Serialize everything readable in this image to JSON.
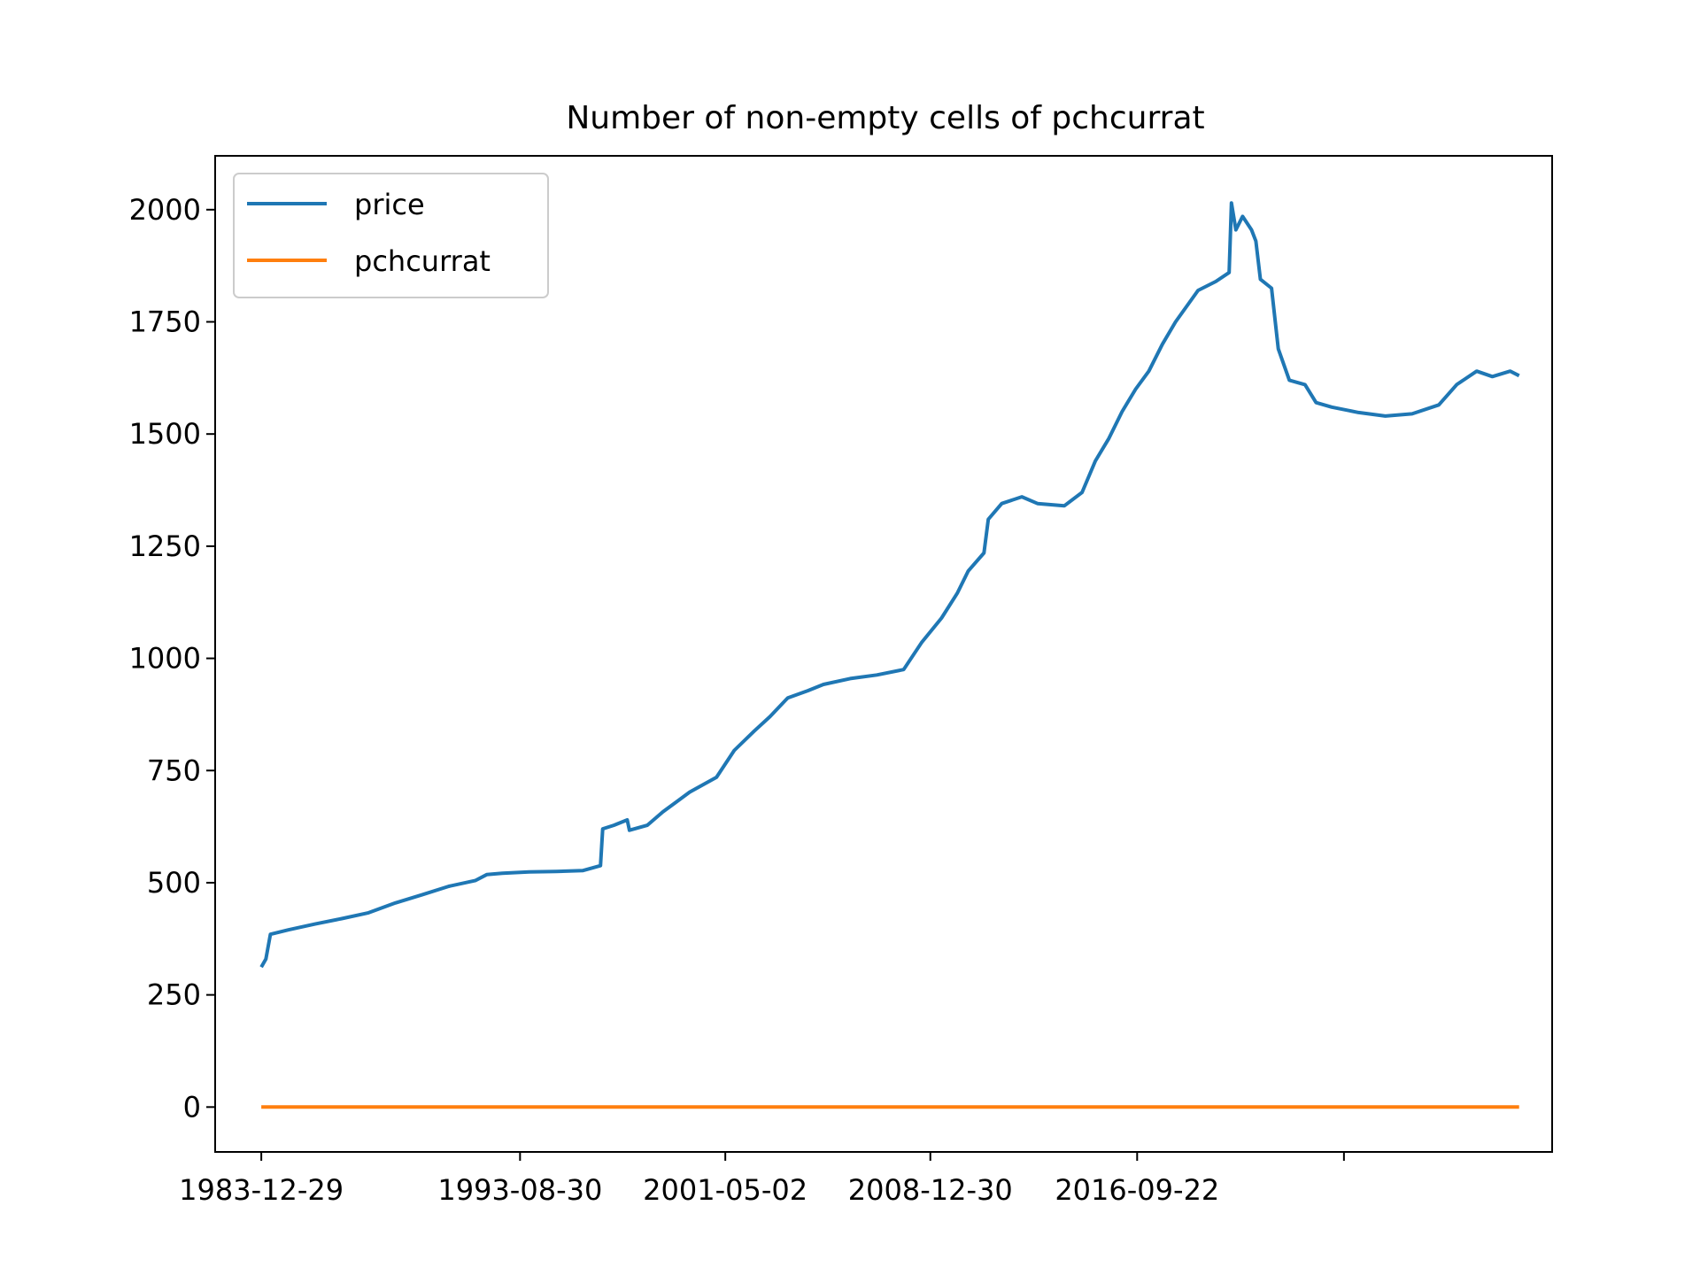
{
  "chart_data": {
    "type": "line",
    "title": "Number of non-empty cells of pchcurrat",
    "xlabel": "",
    "ylabel": "",
    "x_tick_labels": [
      "1983-12-29",
      "1993-08-30",
      "2001-05-02",
      "2008-12-30",
      "2016-09-22"
    ],
    "y_ticks": [
      0,
      250,
      500,
      750,
      1000,
      1250,
      1500,
      1750,
      2000
    ],
    "xlim": [
      "1982-04-08",
      "2032-03-27"
    ],
    "ylim": [
      -100,
      2120
    ],
    "grid": false,
    "legend": "top-left",
    "series": [
      {
        "name": "price",
        "color": "#1f77b4",
        "points": [
          [
            "1983-12-29",
            312
          ],
          [
            "1984-03-01",
            330
          ],
          [
            "1984-05-01",
            385
          ],
          [
            "1985-01-01",
            395
          ],
          [
            "1986-01-01",
            408
          ],
          [
            "1987-01-01",
            420
          ],
          [
            "1988-01-01",
            433
          ],
          [
            "1989-01-01",
            455
          ],
          [
            "1990-01-01",
            473
          ],
          [
            "1991-01-01",
            492
          ],
          [
            "1992-01-01",
            505
          ],
          [
            "1992-06-01",
            518
          ],
          [
            "1993-01-01",
            521
          ],
          [
            "1994-01-01",
            524
          ],
          [
            "1995-01-01",
            525
          ],
          [
            "1996-01-01",
            527
          ],
          [
            "1996-09-01",
            538
          ],
          [
            "1996-10-01",
            620
          ],
          [
            "1997-03-01",
            628
          ],
          [
            "1997-09-01",
            640
          ],
          [
            "1997-10-01",
            617
          ],
          [
            "1998-06-01",
            628
          ],
          [
            "1999-01-01",
            658
          ],
          [
            "2000-01-01",
            702
          ],
          [
            "2001-01-01",
            735
          ],
          [
            "2001-09-01",
            795
          ],
          [
            "2002-06-01",
            838
          ],
          [
            "2003-01-01",
            870
          ],
          [
            "2003-09-01",
            912
          ],
          [
            "2004-06-01",
            928
          ],
          [
            "2005-01-01",
            942
          ],
          [
            "2006-01-01",
            955
          ],
          [
            "2007-01-01",
            963
          ],
          [
            "2008-01-01",
            975
          ],
          [
            "2008-09-01",
            1035
          ],
          [
            "2009-06-01",
            1090
          ],
          [
            "2010-01-01",
            1145
          ],
          [
            "2010-06-01",
            1195
          ],
          [
            "2011-01-01",
            1235
          ],
          [
            "2011-03-01",
            1310
          ],
          [
            "2011-09-01",
            1345
          ],
          [
            "2012-06-01",
            1360
          ],
          [
            "2013-01-01",
            1345
          ],
          [
            "2014-01-01",
            1340
          ],
          [
            "2014-09-01",
            1370
          ],
          [
            "2015-03-01",
            1440
          ],
          [
            "2015-09-01",
            1490
          ],
          [
            "2016-03-01",
            1550
          ],
          [
            "2016-09-01",
            1600
          ],
          [
            "2017-03-01",
            1640
          ],
          [
            "2017-09-01",
            1700
          ],
          [
            "2018-03-01",
            1750
          ],
          [
            "2019-01-01",
            1820
          ],
          [
            "2019-09-01",
            1840
          ],
          [
            "2020-03-01",
            1860
          ],
          [
            "2020-04-01",
            2015
          ],
          [
            "2020-06-01",
            1955
          ],
          [
            "2020-09-01",
            1985
          ],
          [
            "2021-01-01",
            1955
          ],
          [
            "2021-03-01",
            1930
          ],
          [
            "2021-05-01",
            1845
          ],
          [
            "2021-10-01",
            1825
          ],
          [
            "2022-01-01",
            1690
          ],
          [
            "2022-06-01",
            1620
          ],
          [
            "2023-01-01",
            1610
          ],
          [
            "2023-06-01",
            1570
          ],
          [
            "2024-01-01",
            1560
          ],
          [
            "2025-01-01",
            1548
          ],
          [
            "2026-01-01",
            1540
          ],
          [
            "2027-01-01",
            1545
          ],
          [
            "2028-01-01",
            1565
          ],
          [
            "2028-09-01",
            1610
          ],
          [
            "2029-06-01",
            1640
          ],
          [
            "2030-01-01",
            1628
          ],
          [
            "2030-09-01",
            1640
          ],
          [
            "2031-01-01",
            1630
          ]
        ]
      },
      {
        "name": "pchcurrat",
        "color": "#ff7f0e",
        "points": [
          [
            "1983-12-29",
            0
          ],
          [
            "2031-01-01",
            0
          ]
        ]
      }
    ]
  }
}
